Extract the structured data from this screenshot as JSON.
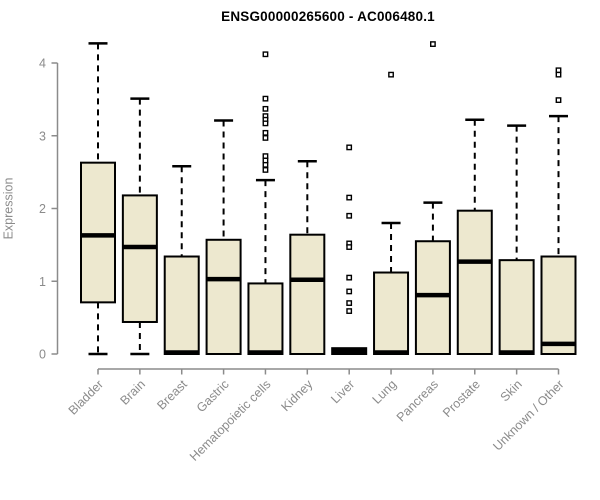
{
  "chart_data": {
    "type": "boxplot",
    "title": "ENSG00000265600 - AC006480.1",
    "ylabel": "Expression",
    "xlabel": "",
    "ylim": [
      0,
      4.3
    ],
    "yticks": [
      0,
      1,
      2,
      3,
      4
    ],
    "grid": false,
    "legend": "none",
    "categories": [
      "Bladder",
      "Brain",
      "Breast",
      "Gastric",
      "Hematopoietic cells",
      "Kidney",
      "Liver",
      "Lung",
      "Pancreas",
      "Prostate",
      "Skin",
      "Unknown / Other"
    ],
    "series": [
      {
        "name": "Bladder",
        "whisker_low": 0,
        "q1": 0.71,
        "median": 1.63,
        "q3": 2.63,
        "whisker_high": 4.27,
        "outliers": []
      },
      {
        "name": "Brain",
        "whisker_low": 0,
        "q1": 0.44,
        "median": 1.47,
        "q3": 2.18,
        "whisker_high": 3.51,
        "outliers": []
      },
      {
        "name": "Breast",
        "whisker_low": 0,
        "q1": 0,
        "median": 0.02,
        "q3": 1.34,
        "whisker_high": 2.58,
        "outliers": []
      },
      {
        "name": "Gastric",
        "whisker_low": 0,
        "q1": 0,
        "median": 1.03,
        "q3": 1.57,
        "whisker_high": 3.21,
        "outliers": []
      },
      {
        "name": "Hematopoietic cells",
        "whisker_low": 0,
        "q1": 0,
        "median": 0.02,
        "q3": 0.97,
        "whisker_high": 2.39,
        "outliers": [
          4.12,
          3.51,
          3.37,
          3.27,
          3.22,
          3.17,
          3.04,
          2.97,
          2.72,
          2.66,
          2.6,
          2.53
        ]
      },
      {
        "name": "Kidney",
        "whisker_low": 0,
        "q1": 0,
        "median": 1.02,
        "q3": 1.64,
        "whisker_high": 2.65,
        "outliers": []
      },
      {
        "name": "Liver",
        "whisker_low": 0,
        "q1": 0,
        "median": 0.04,
        "q3": 0.08,
        "whisker_high": 0.08,
        "outliers": [
          2.84,
          2.15,
          1.9,
          1.52,
          1.47,
          1.05,
          0.86,
          0.7,
          0.59
        ]
      },
      {
        "name": "Lung",
        "whisker_low": 0,
        "q1": 0,
        "median": 0.02,
        "q3": 1.12,
        "whisker_high": 1.8,
        "outliers": [
          3.84
        ]
      },
      {
        "name": "Pancreas",
        "whisker_low": 0,
        "q1": 0,
        "median": 0.81,
        "q3": 1.55,
        "whisker_high": 2.08,
        "outliers": [
          4.26
        ]
      },
      {
        "name": "Prostate",
        "whisker_low": 0,
        "q1": 0,
        "median": 1.27,
        "q3": 1.97,
        "whisker_high": 3.22,
        "outliers": []
      },
      {
        "name": "Skin",
        "whisker_low": 0,
        "q1": 0,
        "median": 0.02,
        "q3": 1.29,
        "whisker_high": 3.14,
        "outliers": []
      },
      {
        "name": "Unknown / Other",
        "whisker_low": 0,
        "q1": 0,
        "median": 0.14,
        "q3": 1.34,
        "whisker_high": 3.27,
        "outliers": [
          3.9,
          3.84,
          3.49
        ]
      }
    ],
    "style": {
      "box_fill": "#EDE8CF",
      "box_stroke": "#000000",
      "median_color": "#000000",
      "whisker_color": "#000000",
      "outlier_fill": "#FFFFFF",
      "outlier_stroke": "#000000",
      "axis_color": "#8B8B8B",
      "label_color": "#8B8B8B",
      "title_color": "#000000",
      "background": "#FFFFFF"
    }
  }
}
